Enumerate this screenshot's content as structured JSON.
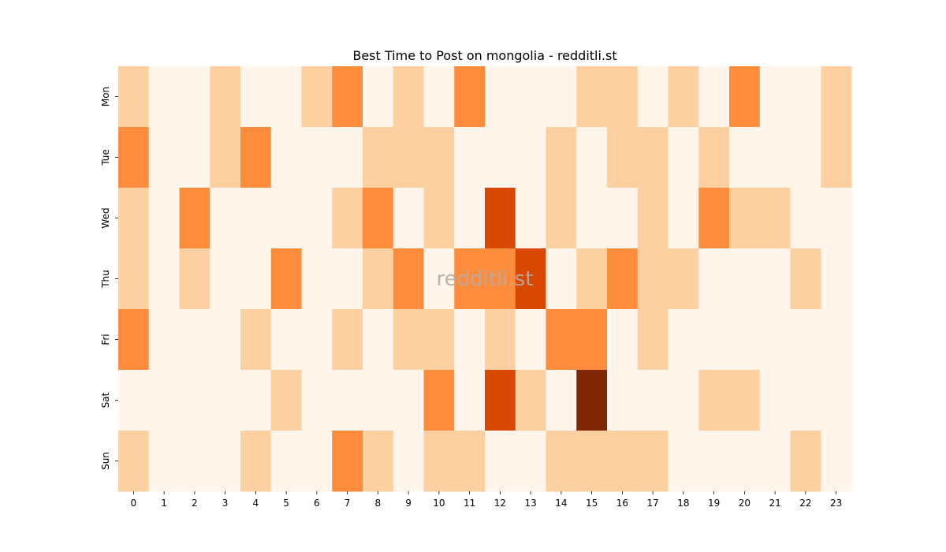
{
  "chart_data": {
    "type": "heatmap",
    "title": "Best Time to Post on mongolia - redditli.st",
    "watermark": "redditli.st",
    "x_labels": [
      "0",
      "1",
      "2",
      "3",
      "4",
      "5",
      "6",
      "7",
      "8",
      "9",
      "10",
      "11",
      "12",
      "13",
      "14",
      "15",
      "16",
      "17",
      "18",
      "19",
      "20",
      "21",
      "22",
      "23"
    ],
    "y_labels": [
      "Mon",
      "Tue",
      "Wed",
      "Thu",
      "Fri",
      "Sat",
      "Sun"
    ],
    "values": [
      [
        1,
        0,
        0,
        1,
        0,
        0,
        1,
        2,
        0,
        1,
        0,
        2,
        0,
        0,
        0,
        1,
        1,
        0,
        1,
        0,
        2,
        0,
        0,
        1
      ],
      [
        2,
        0,
        0,
        1,
        2,
        0,
        0,
        0,
        1,
        1,
        1,
        0,
        0,
        0,
        1,
        0,
        1,
        1,
        0,
        1,
        0,
        0,
        0,
        1
      ],
      [
        1,
        0,
        2,
        0,
        0,
        0,
        0,
        1,
        2,
        0,
        1,
        0,
        3,
        0,
        1,
        0,
        0,
        1,
        0,
        2,
        1,
        1,
        0,
        0
      ],
      [
        1,
        0,
        1,
        0,
        0,
        2,
        0,
        0,
        1,
        2,
        0,
        2,
        2,
        3,
        0,
        1,
        2,
        1,
        1,
        0,
        0,
        0,
        1,
        0
      ],
      [
        2,
        0,
        0,
        0,
        1,
        0,
        0,
        1,
        0,
        1,
        1,
        0,
        1,
        0,
        2,
        2,
        0,
        1,
        0,
        0,
        0,
        0,
        0,
        0
      ],
      [
        0,
        0,
        0,
        0,
        0,
        1,
        0,
        0,
        0,
        0,
        2,
        0,
        3,
        1,
        0,
        4,
        0,
        0,
        0,
        1,
        1,
        0,
        0,
        0
      ],
      [
        1,
        0,
        0,
        0,
        1,
        0,
        0,
        2,
        1,
        0,
        1,
        1,
        0,
        0,
        1,
        1,
        1,
        1,
        0,
        0,
        0,
        0,
        1,
        0
      ]
    ],
    "colorscale": [
      "#fff5eb",
      "#fdd0a2",
      "#fd8d3c",
      "#d94801",
      "#7f2704"
    ],
    "grid": false,
    "legend": "none"
  }
}
